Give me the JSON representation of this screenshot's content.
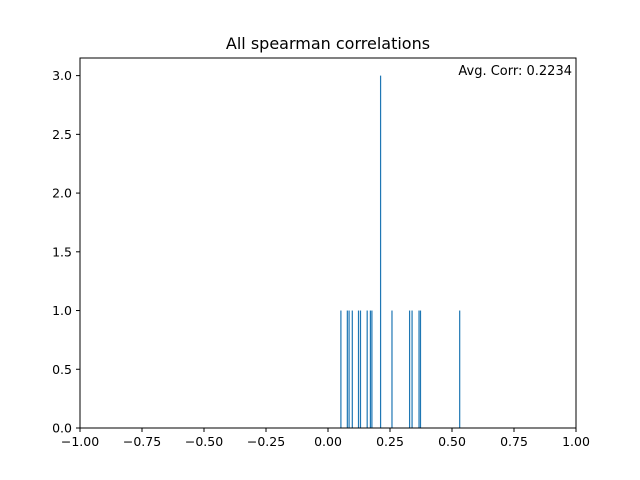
{
  "chart_data": {
    "type": "histogram",
    "title": "All spearman correlations",
    "annotation": "Avg. Corr: 0.2234",
    "xlabel": "",
    "ylabel": "",
    "xlim": [
      -1.0,
      1.0
    ],
    "ylim": [
      0.0,
      3.15
    ],
    "x_ticks": [
      -1.0,
      -0.75,
      -0.5,
      -0.25,
      0.0,
      0.25,
      0.5,
      0.75,
      1.0
    ],
    "x_tick_labels": [
      "−1.00",
      "−0.75",
      "−0.50",
      "−0.25",
      "0.00",
      "0.25",
      "0.50",
      "0.75",
      "1.00"
    ],
    "y_ticks": [
      0.0,
      0.5,
      1.0,
      1.5,
      2.0,
      2.5,
      3.0
    ],
    "y_tick_labels": [
      "0.0",
      "0.5",
      "1.0",
      "1.5",
      "2.0",
      "2.5",
      "3.0"
    ],
    "bar_color": "#1f77b4",
    "grid": false,
    "legend": "none",
    "bars": [
      {
        "x": 0.052,
        "count": 1
      },
      {
        "x": 0.078,
        "count": 1
      },
      {
        "x": 0.085,
        "count": 1
      },
      {
        "x": 0.098,
        "count": 1
      },
      {
        "x": 0.123,
        "count": 1
      },
      {
        "x": 0.131,
        "count": 1
      },
      {
        "x": 0.158,
        "count": 1
      },
      {
        "x": 0.171,
        "count": 1
      },
      {
        "x": 0.177,
        "count": 1
      },
      {
        "x": 0.212,
        "count": 3
      },
      {
        "x": 0.258,
        "count": 1
      },
      {
        "x": 0.329,
        "count": 1
      },
      {
        "x": 0.339,
        "count": 1
      },
      {
        "x": 0.367,
        "count": 1
      },
      {
        "x": 0.373,
        "count": 1
      },
      {
        "x": 0.531,
        "count": 1
      }
    ]
  }
}
